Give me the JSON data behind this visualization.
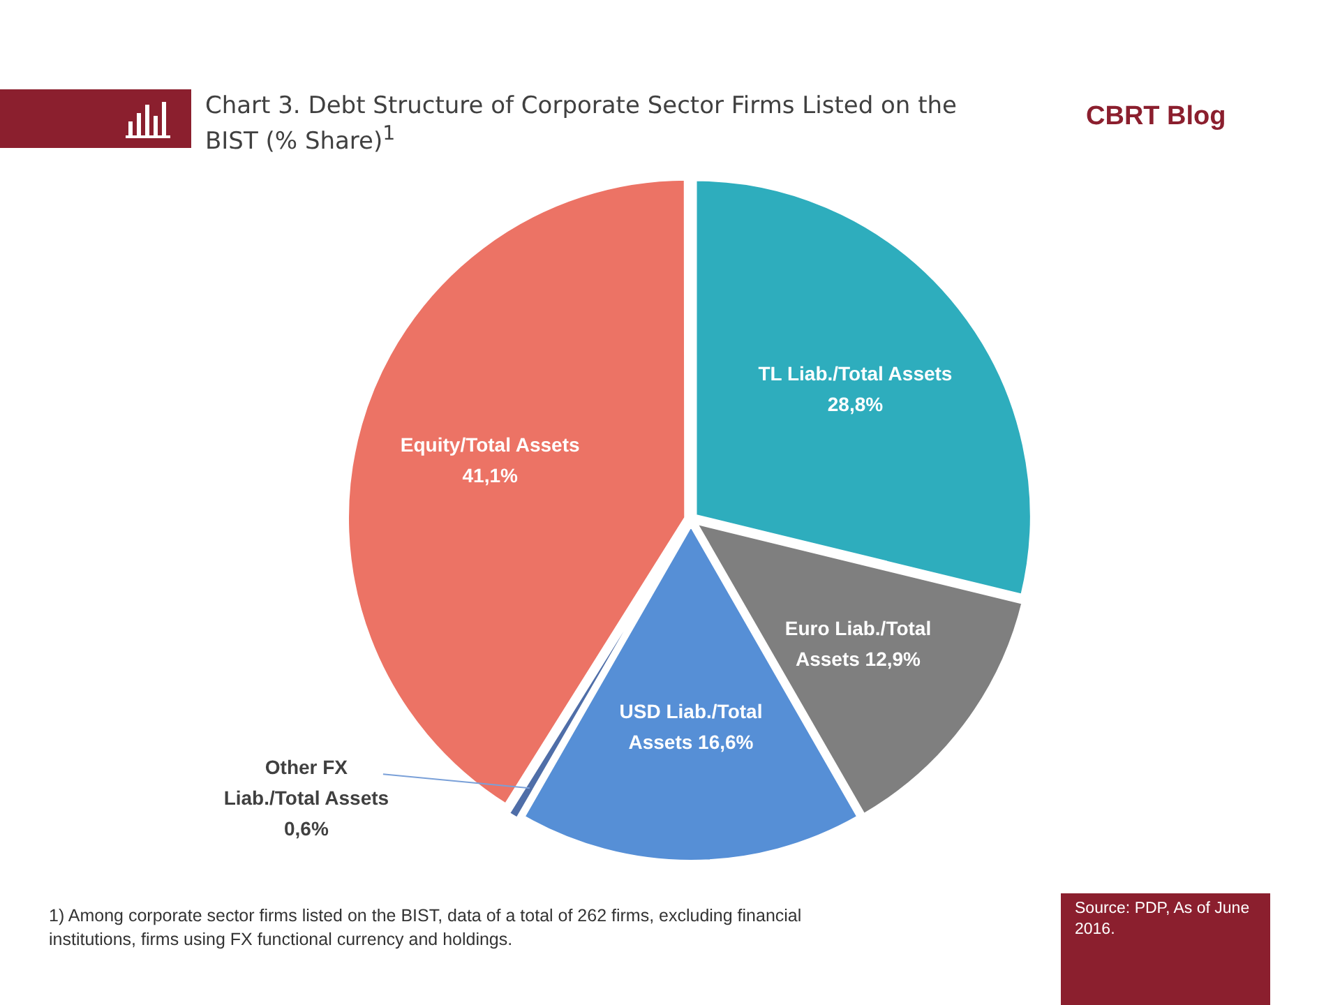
{
  "chart_data": {
    "type": "pie",
    "title": "Chart 3. Debt Structure of Corporate Sector Firms Listed on the BIST (% Share)$^{1}$",
    "categories": [
      "TL Liab./Total Assets",
      "Euro Liab./Total Assets",
      "USD Liab./Total Assets",
      "Other FX Liab./Total Assets",
      "Equity/Total Assets"
    ],
    "values": [
      28.8,
      12.9,
      16.6,
      0.6,
      41.1
    ],
    "colors": [
      "#2eadbd",
      "#7f7f7f",
      "#568fd6",
      "#4f6ea8",
      "#ec7365"
    ],
    "value_labels": [
      "28,8%",
      "12,9%",
      "16,6%",
      "0,6%",
      "41,1%"
    ],
    "legend": false,
    "annotations": [
      "CBRT Blog",
      "1) Among corporate sector firms listed on the BIST, data of a total of 262 firms, excluding financial institutions, firms using FX functional currency and holdings.",
      "Source: PDP, As of June 2016."
    ]
  }
}
